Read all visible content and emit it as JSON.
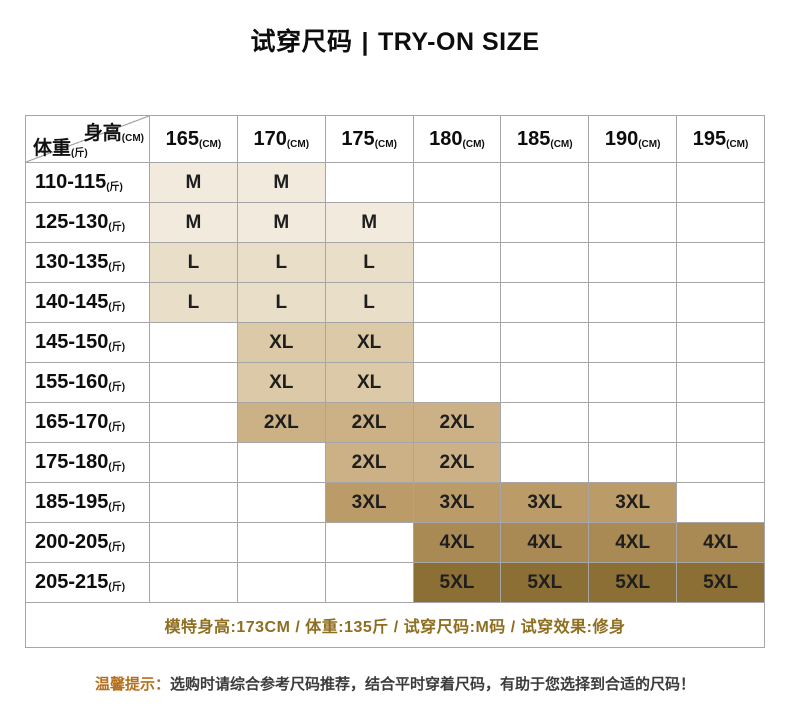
{
  "title": {
    "cn": "试穿尺码",
    "divider": "|",
    "en": "TRY-ON SIZE"
  },
  "chart_data": {
    "type": "table",
    "corner": {
      "top_label": "身高",
      "top_unit": "(CM)",
      "bottom_label": "体重",
      "bottom_unit": "(斤)"
    },
    "columns": [
      {
        "label": "165",
        "unit": "(CM)"
      },
      {
        "label": "170",
        "unit": "(CM)"
      },
      {
        "label": "175",
        "unit": "(CM)"
      },
      {
        "label": "180",
        "unit": "(CM)"
      },
      {
        "label": "185",
        "unit": "(CM)"
      },
      {
        "label": "190",
        "unit": "(CM)"
      },
      {
        "label": "195",
        "unit": "(CM)"
      }
    ],
    "rows": [
      {
        "label": "110-115",
        "unit": "(斤)",
        "cells": [
          "M",
          "M",
          "",
          "",
          "",
          "",
          ""
        ]
      },
      {
        "label": "125-130",
        "unit": "(斤)",
        "cells": [
          "M",
          "M",
          "M",
          "",
          "",
          "",
          ""
        ]
      },
      {
        "label": "130-135",
        "unit": "(斤)",
        "cells": [
          "L",
          "L",
          "L",
          "",
          "",
          "",
          ""
        ]
      },
      {
        "label": "140-145",
        "unit": "(斤)",
        "cells": [
          "L",
          "L",
          "L",
          "",
          "",
          "",
          ""
        ]
      },
      {
        "label": "145-150",
        "unit": "(斤)",
        "cells": [
          "",
          "XL",
          "XL",
          "",
          "",
          "",
          ""
        ]
      },
      {
        "label": "155-160",
        "unit": "(斤)",
        "cells": [
          "",
          "XL",
          "XL",
          "",
          "",
          "",
          ""
        ]
      },
      {
        "label": "165-170",
        "unit": "(斤)",
        "cells": [
          "",
          "2XL",
          "2XL",
          "2XL",
          "",
          "",
          ""
        ]
      },
      {
        "label": "175-180",
        "unit": "(斤)",
        "cells": [
          "",
          "",
          "2XL",
          "2XL",
          "",
          "",
          ""
        ]
      },
      {
        "label": "185-195",
        "unit": "(斤)",
        "cells": [
          "",
          "",
          "3XL",
          "3XL",
          "3XL",
          "3XL",
          ""
        ]
      },
      {
        "label": "200-205",
        "unit": "(斤)",
        "cells": [
          "",
          "",
          "",
          "4XL",
          "4XL",
          "4XL",
          "4XL"
        ]
      },
      {
        "label": "205-215",
        "unit": "(斤)",
        "cells": [
          "",
          "",
          "",
          "5XL",
          "5XL",
          "5XL",
          "5XL"
        ]
      }
    ],
    "fills": {
      "M": "#f2ebdd",
      "L": "#e9dfc8",
      "XL": "#dcc9a7",
      "2XL": "#cbb185",
      "3XL": "#bb9c69",
      "4XL": "#a98a55",
      "5XL": "#8c6f35"
    },
    "footer": "模特身高:173CM / 体重:135斤 / 试穿尺码:M码 / 试穿效果:修身"
  },
  "tip": {
    "label": "温馨提示：",
    "text": "选购时请综合参考尺码推荐，结合平时穿着尺码，有助于您选择到合适的尺码！"
  }
}
